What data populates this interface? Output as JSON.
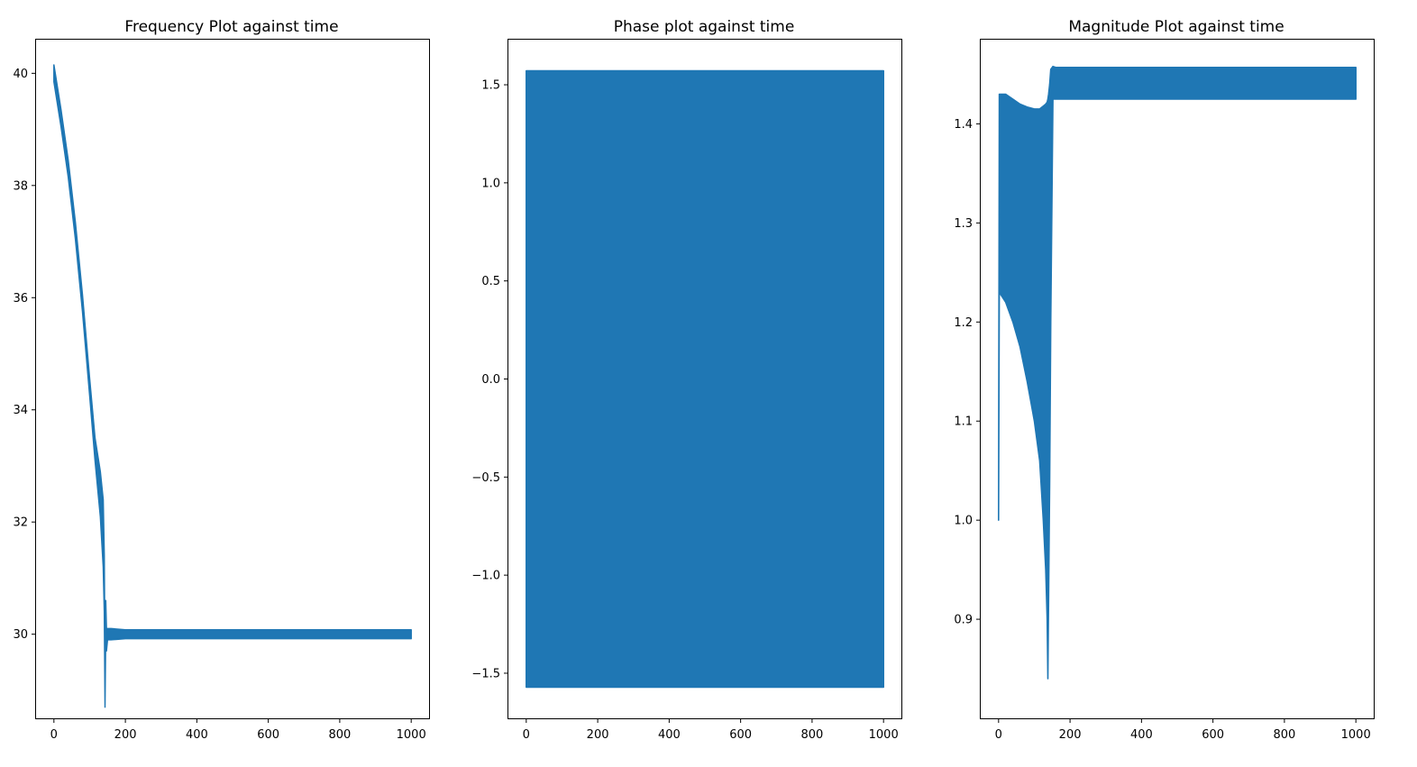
{
  "chart_data": [
    {
      "type": "line",
      "title": "Frequency Plot against time",
      "xlabel": "",
      "ylabel": "",
      "xlim": [
        -50,
        1050
      ],
      "ylim": [
        28.5,
        40.6
      ],
      "xticks": [
        0,
        200,
        400,
        600,
        800,
        1000
      ],
      "yticks": [
        30,
        32,
        34,
        36,
        38,
        40
      ],
      "xtick_labels": [
        "0",
        "200",
        "400",
        "600",
        "800",
        "1000"
      ],
      "ytick_labels": [
        "30",
        "32",
        "34",
        "36",
        "38",
        "40"
      ],
      "color": "#1f77b4",
      "series": [
        {
          "x": [
            0,
            20,
            40,
            60,
            80,
            100,
            115,
            130,
            138,
            141,
            143,
            145,
            147,
            150,
            160,
            200,
            400,
            600,
            800,
            1000
          ],
          "y": [
            40.0,
            39.2,
            38.3,
            37.2,
            35.9,
            34.4,
            33.3,
            32.5,
            31.8,
            30.9,
            29.0,
            30.3,
            29.9,
            30.0,
            30.0,
            30.0,
            30.0,
            30.0,
            30.0,
            30.0
          ],
          "band": [
            0.15,
            0.15,
            0.15,
            0.15,
            0.15,
            0.15,
            0.2,
            0.4,
            0.6,
            0.5,
            0.3,
            0.3,
            0.2,
            0.1,
            0.1,
            0.08,
            0.08,
            0.08,
            0.08,
            0.08
          ]
        }
      ]
    },
    {
      "type": "line",
      "title": "Phase plot against time",
      "xlabel": "",
      "ylabel": "",
      "xlim": [
        -50,
        1050
      ],
      "ylim": [
        -1.73,
        1.73
      ],
      "xticks": [
        0,
        200,
        400,
        600,
        800,
        1000
      ],
      "yticks": [
        -1.5,
        -1.0,
        -0.5,
        0.0,
        0.5,
        1.0,
        1.5
      ],
      "xtick_labels": [
        "0",
        "200",
        "400",
        "600",
        "800",
        "1000"
      ],
      "ytick_labels": [
        "−1.5",
        "−1.0",
        "−0.5",
        "0.0",
        "0.5",
        "1.0",
        "1.5"
      ],
      "color": "#1f77b4",
      "series": [
        {
          "x": [
            0,
            1000
          ],
          "upper": [
            1.5708,
            1.5708
          ],
          "lower": [
            -1.5708,
            -1.5708
          ]
        }
      ]
    },
    {
      "type": "line",
      "title": "Magnitude Plot against time",
      "xlabel": "",
      "ylabel": "",
      "xlim": [
        -50,
        1050
      ],
      "ylim": [
        0.8,
        1.485
      ],
      "xticks": [
        0,
        200,
        400,
        600,
        800,
        1000
      ],
      "yticks": [
        0.9,
        1.0,
        1.1,
        1.2,
        1.3,
        1.4
      ],
      "xtick_labels": [
        "0",
        "200",
        "400",
        "600",
        "800",
        "1000"
      ],
      "ytick_labels": [
        "0.9",
        "1.0",
        "1.1",
        "1.2",
        "1.3",
        "1.4"
      ],
      "color": "#1f77b4",
      "series": [
        {
          "x": [
            0,
            2,
            20,
            40,
            60,
            80,
            100,
            115,
            125,
            132,
            136,
            138,
            140,
            143,
            146,
            152,
            160,
            200,
            400,
            600,
            800,
            1000
          ],
          "upper": [
            1.0,
            1.43,
            1.43,
            1.425,
            1.42,
            1.417,
            1.415,
            1.415,
            1.418,
            1.42,
            1.422,
            1.425,
            1.43,
            1.44,
            1.455,
            1.458,
            1.457,
            1.457,
            1.457,
            1.457,
            1.457,
            1.457
          ],
          "lower": [
            1.0,
            1.23,
            1.22,
            1.2,
            1.175,
            1.14,
            1.1,
            1.06,
            1.0,
            0.95,
            0.9,
            0.84,
            0.92,
            1.04,
            1.2,
            1.425,
            1.425,
            1.425,
            1.425,
            1.425,
            1.425,
            1.425
          ]
        }
      ]
    }
  ]
}
